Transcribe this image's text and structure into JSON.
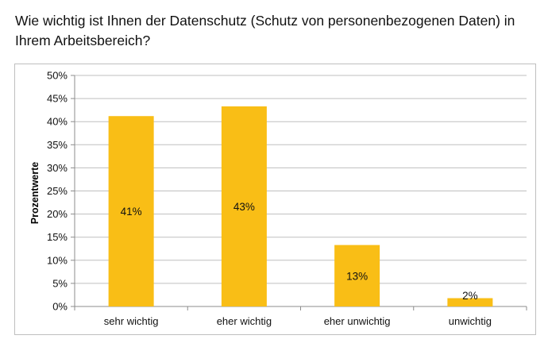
{
  "title": "Wie wichtig ist Ihnen der Datenschutz (Schutz von personenbezogenen Daten) in Ihrem Arbeitsbereich?",
  "colors": {
    "bar": "#F9BE16",
    "grid": "#bfbfbf",
    "axis": "#8c8c8c"
  },
  "chart_data": {
    "type": "bar",
    "title": "Wie wichtig ist Ihnen der Datenschutz (Schutz von personenbezogenen Daten) in Ihrem Arbeitsbereich?",
    "xlabel": "",
    "ylabel": "Prozentwerte",
    "categories": [
      "sehr wichtig",
      "eher wichtig",
      "eher unwichtig",
      "unwichtig"
    ],
    "values": [
      41.2,
      43.3,
      13.3,
      1.8
    ],
    "data_labels": [
      "41%",
      "43%",
      "13%",
      "2%"
    ],
    "ylim": [
      0,
      50
    ],
    "yticks": [
      0,
      5,
      10,
      15,
      20,
      25,
      30,
      35,
      40,
      45,
      50
    ],
    "ytick_labels": [
      "0%",
      "5%",
      "10%",
      "15%",
      "20%",
      "25%",
      "30%",
      "35%",
      "40%",
      "45%",
      "50%"
    ],
    "grid": true,
    "legend": "none"
  }
}
